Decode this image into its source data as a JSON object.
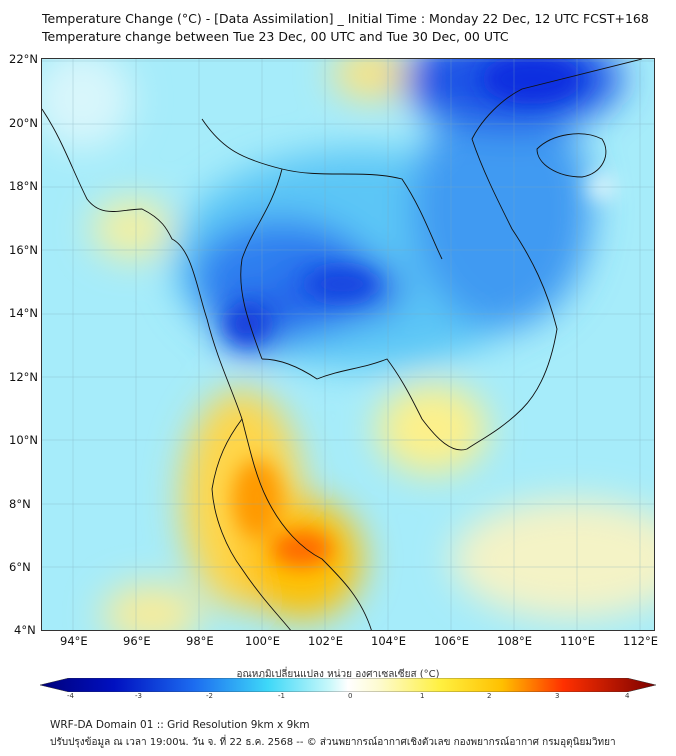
{
  "header": {
    "title": "Temperature Change (°C) - [Data Assimilation] _ Initial Time : Monday 22 Dec, 12 UTC FCST+168",
    "subtitle": "Temperature change between Tue 23 Dec, 00 UTC and Tue 30 Dec, 00 UTC"
  },
  "map": {
    "lat_labels": [
      "22°N",
      "20°N",
      "18°N",
      "16°N",
      "14°N",
      "12°N",
      "10°N",
      "8°N",
      "6°N",
      "4°N"
    ],
    "lon_labels": [
      "94°E",
      "96°E",
      "98°E",
      "100°E",
      "102°E",
      "104°E",
      "106°E",
      "108°E",
      "110°E",
      "112°E"
    ],
    "colors": {
      "background": "#a6ecfa",
      "blue_deep": "#0a2ee0",
      "blue": "#2e7af0",
      "warm": "#ffd200",
      "hot": "#ff6a00"
    }
  },
  "colorbar": {
    "title": "อุณหภูมิเปลี่ยนแปลง หน่วย องศาเซลเซียส (°C)",
    "ticks": [
      "-4",
      "-3",
      "-2",
      "-1",
      "0",
      "1",
      "2",
      "3",
      "4"
    ]
  },
  "footer": {
    "line1": "WRF-DA Domain 01 :: Grid Resolution 9km x 9km",
    "line2": "ปรับปรุงข้อมูล ณ เวลา 19:00น. วัน จ. ที่ 22 ธ.ค. 2568 -- © ส่วนพยากรณ์อากาศเชิงตัวเลข กองพยากรณ์อากาศ กรมอุตุนิยมวิทยา"
  }
}
